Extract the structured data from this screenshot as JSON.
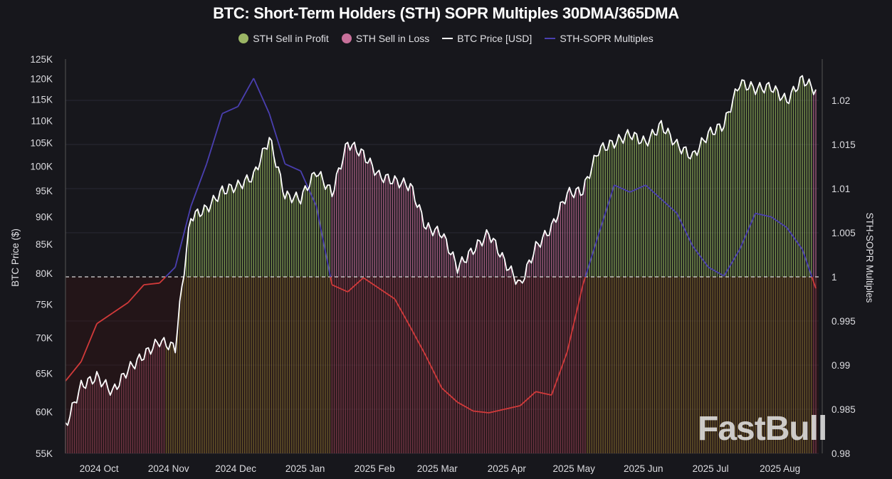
{
  "chart_data": {
    "type": "bar+line",
    "title": "BTC: Short-Term Holders (STH) SOPR Multiples 30DMA/365DMA",
    "legend": [
      {
        "name": "STH Sell in Profit",
        "color": "#8fae5a",
        "shape": "dot"
      },
      {
        "name": "STH Sell in Loss",
        "color": "#c8709a",
        "shape": "dot"
      },
      {
        "name": "BTC Price [USD]",
        "color": "#ffffff",
        "shape": "line"
      },
      {
        "name": "STH-SOPR Multiples",
        "color": "#4a3fb0",
        "shape": "line"
      }
    ],
    "legend_placement": "top-center",
    "ylabel_left": "BTC Price ($)",
    "ylabel_right": "STH-SOPR Multiples",
    "left_axis": {
      "scale": "log",
      "range": [
        55000,
        125000
      ],
      "ticks": [
        "55K",
        "60K",
        "65K",
        "70K",
        "75K",
        "80K",
        "85K",
        "90K",
        "95K",
        "100K",
        "105K",
        "110K",
        "115K",
        "120K",
        "125K"
      ]
    },
    "right_axis": {
      "scale": "linear",
      "range": [
        0.98,
        1.024
      ],
      "ticks": [
        "0.98",
        "0.985",
        "0.99",
        "0.995",
        "1",
        "1.005",
        "1.01",
        "1.015",
        "1.02"
      ]
    },
    "x_ticks": [
      {
        "label": "2024 Oct",
        "date": "2024-10-01"
      },
      {
        "label": "2024 Nov",
        "date": "2024-11-01"
      },
      {
        "label": "2024 Dec",
        "date": "2024-12-01"
      },
      {
        "label": "2025 Jan",
        "date": "2025-01-01"
      },
      {
        "label": "2025 Feb",
        "date": "2025-02-01"
      },
      {
        "label": "2025 Mar",
        "date": "2025-03-01"
      },
      {
        "label": "2025 Apr",
        "date": "2025-04-01"
      },
      {
        "label": "2025 May",
        "date": "2025-05-01"
      },
      {
        "label": "2025 Jun",
        "date": "2025-06-01"
      },
      {
        "label": "2025 Jul",
        "date": "2025-07-01"
      },
      {
        "label": "2025 Aug",
        "date": "2025-08-01"
      }
    ],
    "x_range": [
      "2024-09-16",
      "2025-08-17"
    ],
    "threshold": 1,
    "grid": true,
    "colors": {
      "profit_upper": "#9bbd5f",
      "profit_lower": "#c4c048",
      "loss_upper": "#c8709a",
      "loss_lower": "#d86a8a",
      "price": "#ffffff",
      "sopr_above": "#4a3fb0",
      "sopr_below": "#d23a3a",
      "threshold_line": "#d8d8d8"
    },
    "dates": [
      "2024-09-16",
      "2024-09-23",
      "2024-09-30",
      "2024-10-07",
      "2024-10-14",
      "2024-10-21",
      "2024-10-28",
      "2024-11-04",
      "2024-11-11",
      "2024-11-18",
      "2024-11-25",
      "2024-12-02",
      "2024-12-09",
      "2024-12-16",
      "2024-12-23",
      "2024-12-30",
      "2025-01-06",
      "2025-01-13",
      "2025-01-20",
      "2025-01-27",
      "2025-02-03",
      "2025-02-10",
      "2025-02-17",
      "2025-02-24",
      "2025-03-03",
      "2025-03-10",
      "2025-03-17",
      "2025-03-24",
      "2025-03-31",
      "2025-04-07",
      "2025-04-14",
      "2025-04-21",
      "2025-04-28",
      "2025-05-05",
      "2025-05-12",
      "2025-05-19",
      "2025-05-26",
      "2025-06-02",
      "2025-06-09",
      "2025-06-16",
      "2025-06-23",
      "2025-06-30",
      "2025-07-07",
      "2025-07-14",
      "2025-07-21",
      "2025-07-28",
      "2025-08-04",
      "2025-08-11",
      "2025-08-17"
    ],
    "series": [
      {
        "name": "BTC Price [USD]",
        "axis": "left",
        "values": [
          58200,
          63300,
          64500,
          62500,
          65500,
          67500,
          69500,
          68500,
          90000,
          91500,
          95000,
          96000,
          98000,
          106000,
          94000,
          93500,
          99000,
          94500,
          105000,
          102500,
          98000,
          97000,
          96000,
          88000,
          87000,
          81000,
          84000,
          87000,
          82000,
          78000,
          84500,
          88000,
          94500,
          95000,
          103500,
          105000,
          107000,
          105000,
          109000,
          104500,
          102000,
          107000,
          109000,
          119000,
          117500,
          118000,
          114500,
          120000,
          117000
        ]
      },
      {
        "name": "STH-SOPR Multiples",
        "axis": "right",
        "values": [
          0.9882,
          0.9904,
          0.9947,
          0.9959,
          0.9971,
          0.9991,
          0.9993,
          1.0011,
          1.008,
          1.0128,
          1.0185,
          1.0193,
          1.0225,
          1.0185,
          1.0128,
          1.012,
          1.008,
          0.9991,
          0.9983,
          0.9999,
          0.9987,
          0.9975,
          0.9943,
          0.991,
          0.9874,
          0.9858,
          0.9848,
          0.9846,
          0.985,
          0.9854,
          0.987,
          0.9866,
          0.9915,
          0.9991,
          1.0048,
          1.0104,
          1.0096,
          1.0104,
          1.0088,
          1.0072,
          1.0035,
          1.0011,
          1.0001,
          1.0031,
          1.0072,
          1.0068,
          1.0056,
          1.0031,
          0.9987
        ]
      }
    ],
    "watermark": "FastBull"
  }
}
